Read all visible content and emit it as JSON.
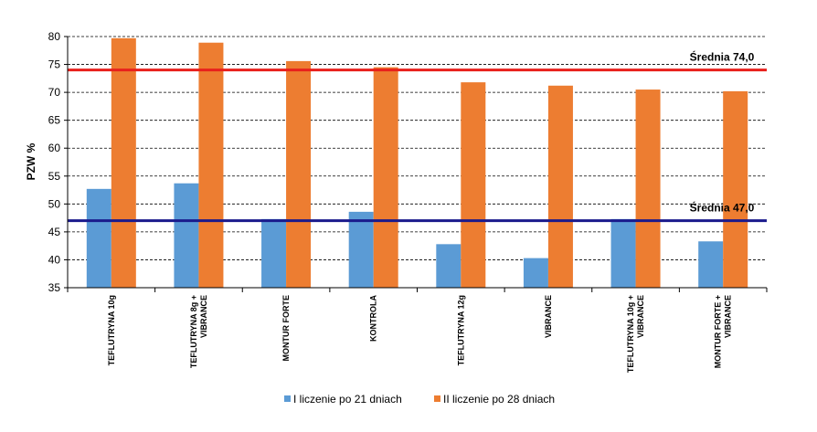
{
  "chart_data": {
    "type": "bar",
    "title": "",
    "xlabel": "",
    "ylabel": "PZW %",
    "ylim": [
      35,
      80
    ],
    "yticks": [
      35,
      40,
      45,
      50,
      55,
      60,
      65,
      70,
      75,
      80
    ],
    "grid": "horizontal dashed",
    "legend_position": "bottom",
    "categories": [
      [
        "TEFLUTRYNA 10g"
      ],
      [
        "TEFLUTRYNA 8g +",
        "VIBRANCE"
      ],
      [
        "MONTUR FORTE"
      ],
      [
        "KONTROLA"
      ],
      [
        "TEFLUTRYNA 12g"
      ],
      [
        "VIBRANCE"
      ],
      [
        "TEFLUTRYNA 10g +",
        "VIBRANCE"
      ],
      [
        "MONTUR FORTE +",
        "VIBRANCE"
      ]
    ],
    "series": [
      {
        "name": "I liczenie po  21 dniach",
        "color": "#5b9bd5",
        "values": [
          52.7,
          53.7,
          47.3,
          48.6,
          42.8,
          40.3,
          47.3,
          43.3
        ]
      },
      {
        "name": "II liczenie po 28 dniach",
        "color": "#ed7d31",
        "values": [
          79.7,
          78.9,
          75.6,
          74.5,
          71.8,
          71.2,
          70.5,
          70.2
        ]
      }
    ],
    "reference_lines": [
      {
        "value": 74.0,
        "label": "Średnia 74,0",
        "color": "#e8201c"
      },
      {
        "value": 47.0,
        "label": "Średnia 47,0",
        "color": "#1a1a8c"
      }
    ]
  }
}
